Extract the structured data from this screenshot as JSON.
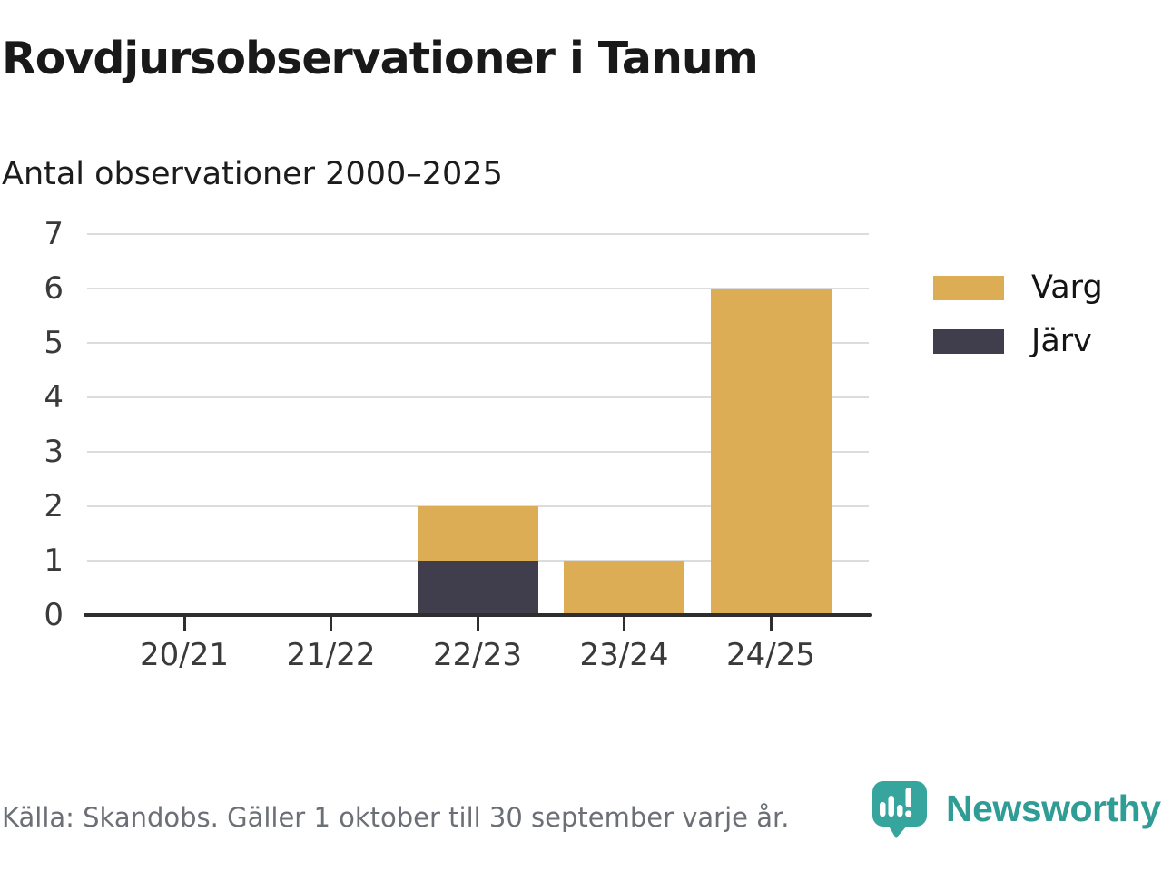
{
  "colors": {
    "varg": "#DCAD55",
    "jarv": "#403E4C",
    "grid": "#DCDCDC",
    "axis": "#2E2E2E",
    "tick_text": "#3A3A3A",
    "footer_text": "#6C7076",
    "brand_teal": "#36A59D",
    "brand_text_teal": "#2F9C95"
  },
  "footer": {
    "source": "Källa: Skandobs. Gäller 1 oktober till 30 september varje år.",
    "brand": "Newsworthy",
    "logo_icon": "newsworthy-speech-bubble-bars-icon"
  },
  "chart_data": {
    "type": "bar",
    "stacked": true,
    "title": "Rovdjursobservationer i Tanum",
    "subtitle": "Antal observationer 2000–2025",
    "categories": [
      "20/21",
      "21/22",
      "22/23",
      "23/24",
      "24/25"
    ],
    "series": [
      {
        "name": "Varg",
        "color": "#DCAD55",
        "values": [
          0,
          0,
          1,
          1,
          6
        ]
      },
      {
        "name": "Järv",
        "color": "#403E4C",
        "values": [
          0,
          0,
          1,
          0,
          0
        ]
      }
    ],
    "stack_order_bottom_to_top": [
      "Järv",
      "Varg"
    ],
    "xlabel": "",
    "ylabel": "",
    "ylim": [
      0,
      7
    ],
    "yticks": [
      0,
      1,
      2,
      3,
      4,
      5,
      6,
      7
    ],
    "grid": true,
    "legend_position": "right"
  }
}
